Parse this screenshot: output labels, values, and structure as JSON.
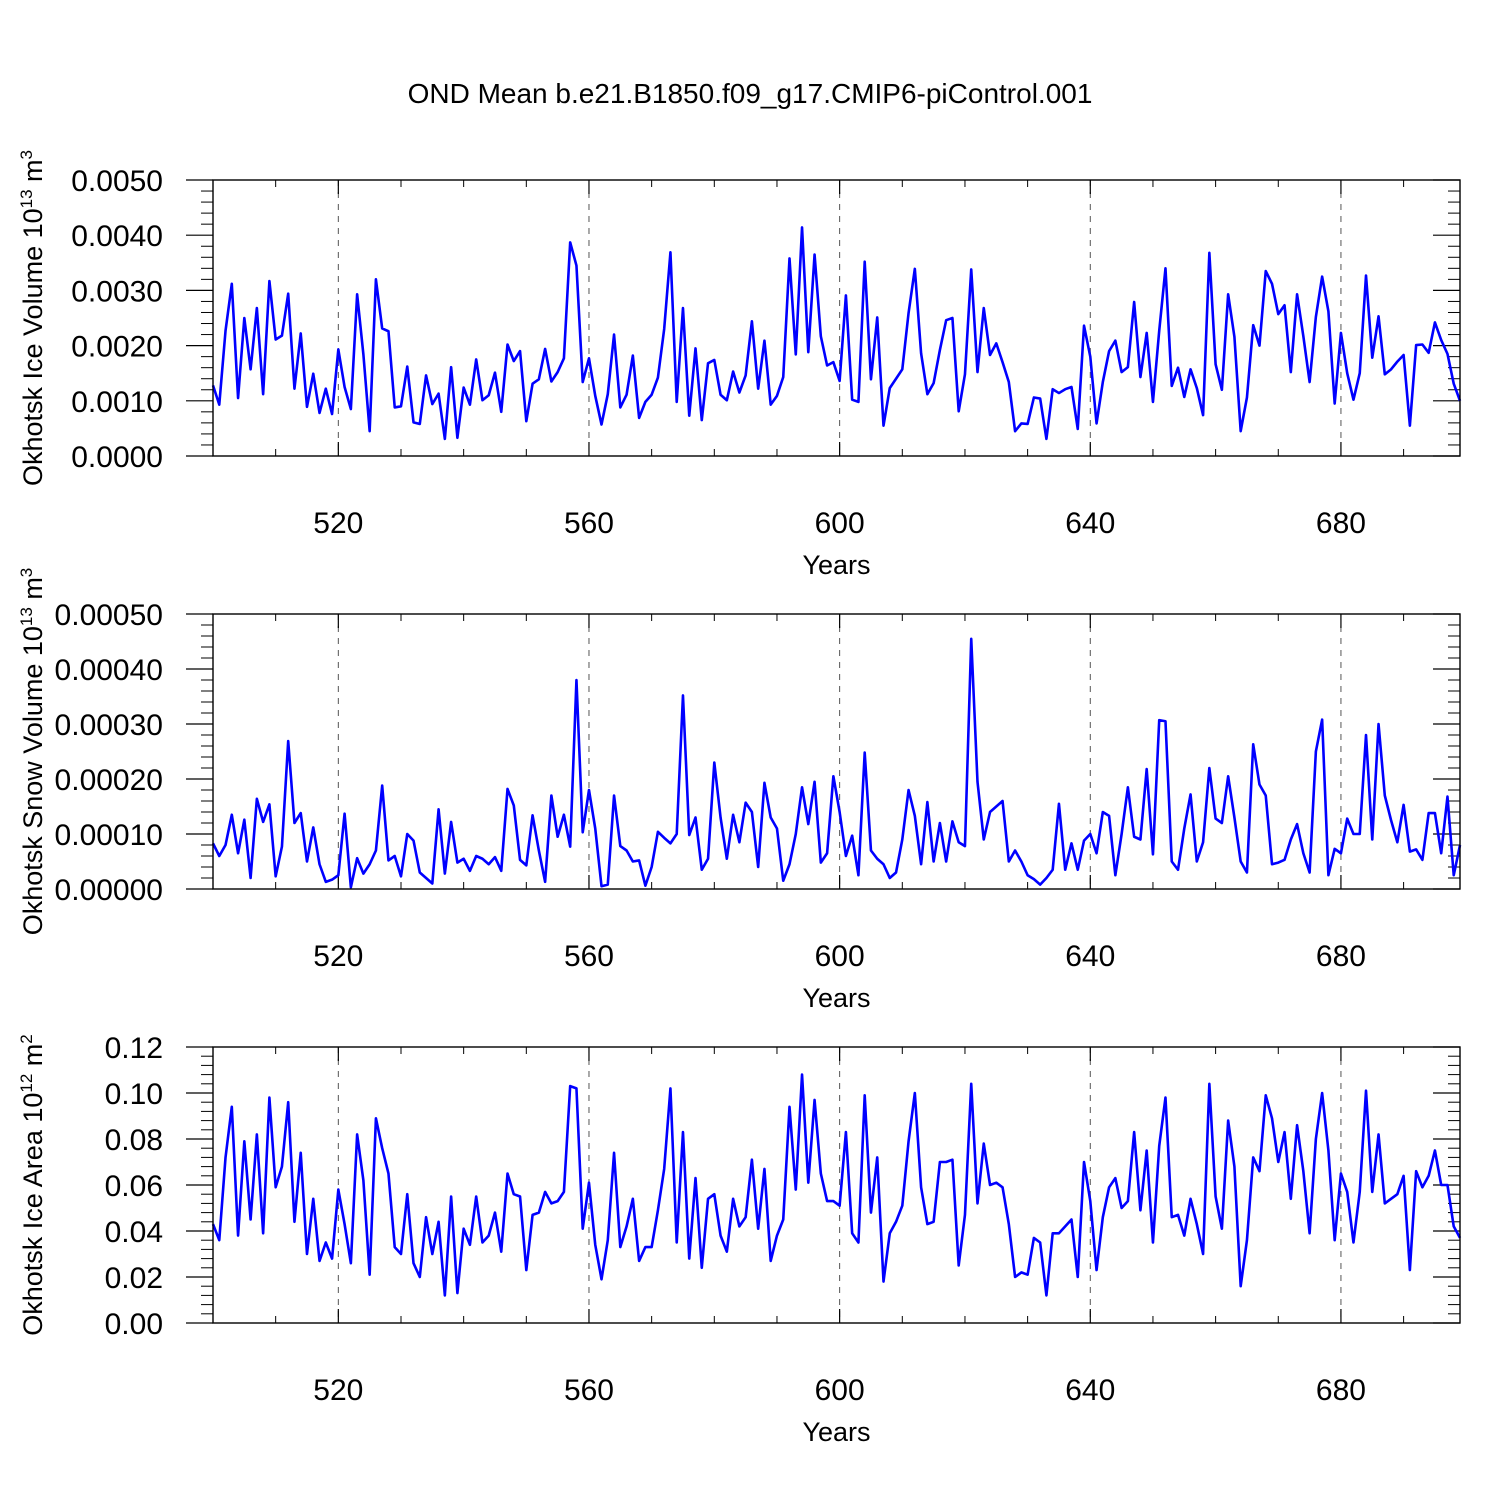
{
  "title": "OND Mean b.e21.B1850.f09_g17.CMIP6-piControl.001",
  "colors": {
    "series": "#0000ff",
    "axis": "#000000",
    "grid": "#555555"
  },
  "chart_data": [
    {
      "type": "line",
      "ylabel_main": "Okhotsk Ice Volume 10",
      "ylabel_exp": "13",
      "ylabel_unit": " m",
      "ylabel_unit_exp": "3",
      "xlabel": "Years",
      "xlim": [
        500,
        699
      ],
      "ylim": [
        0,
        0.005
      ],
      "yticks": [
        0,
        0.001,
        0.002,
        0.003,
        0.004,
        0.005
      ],
      "ytick_labels": [
        "0.0000",
        "0.0010",
        "0.0020",
        "0.0030",
        "0.0040",
        "0.0050"
      ],
      "xticks": [
        520,
        560,
        600,
        640,
        680
      ],
      "xtick_labels": [
        "520",
        "560",
        "600",
        "640",
        "680"
      ],
      "x_start": 500,
      "values": [
        0.00128,
        0.00093,
        0.00227,
        0.00312,
        0.00105,
        0.0025,
        0.00157,
        0.00268,
        0.00112,
        0.00317,
        0.00211,
        0.00218,
        0.00294,
        0.00122,
        0.00222,
        0.00089,
        0.00149,
        0.00078,
        0.00122,
        0.00076,
        0.00193,
        0.00125,
        0.00085,
        0.00293,
        0.00184,
        0.00045,
        0.0032,
        0.00231,
        0.00226,
        0.00088,
        0.0009,
        0.00162,
        0.00061,
        0.00058,
        0.00146,
        0.00094,
        0.00113,
        0.00031,
        0.00161,
        0.00033,
        0.00124,
        0.00093,
        0.00175,
        0.00101,
        0.0011,
        0.00151,
        0.0008,
        0.00202,
        0.00172,
        0.0019,
        0.00063,
        0.00131,
        0.00139,
        0.00194,
        0.00135,
        0.00152,
        0.00177,
        0.00387,
        0.00345,
        0.00134,
        0.00177,
        0.00109,
        0.00057,
        0.00112,
        0.0022,
        0.00088,
        0.00111,
        0.00182,
        0.00069,
        0.00098,
        0.00111,
        0.00142,
        0.0023,
        0.00369,
        0.00098,
        0.00268,
        0.00073,
        0.00195,
        0.00065,
        0.00168,
        0.00174,
        0.00111,
        0.00101,
        0.00153,
        0.00115,
        0.00146,
        0.00244,
        0.00122,
        0.00209,
        0.00093,
        0.00109,
        0.00143,
        0.00358,
        0.00184,
        0.00414,
        0.00188,
        0.00365,
        0.00217,
        0.00164,
        0.0017,
        0.00136,
        0.00291,
        0.00102,
        0.00098,
        0.00352,
        0.00139,
        0.00251,
        0.00055,
        0.00123,
        0.0014,
        0.00157,
        0.00259,
        0.00339,
        0.00186,
        0.00112,
        0.00132,
        0.00192,
        0.00246,
        0.0025,
        0.00081,
        0.00148,
        0.00338,
        0.00152,
        0.00268,
        0.00183,
        0.00204,
        0.0017,
        0.00134,
        0.00045,
        0.00059,
        0.00058,
        0.00106,
        0.00104,
        0.00031,
        0.00121,
        0.00114,
        0.00121,
        0.00125,
        0.00049,
        0.00236,
        0.0018,
        0.00059,
        0.00134,
        0.0019,
        0.00209,
        0.00152,
        0.00161,
        0.00279,
        0.00143,
        0.00223,
        0.00098,
        0.00227,
        0.0034,
        0.00127,
        0.0016,
        0.00107,
        0.00157,
        0.00123,
        0.00074,
        0.00368,
        0.00166,
        0.0012,
        0.00293,
        0.00216,
        0.00045,
        0.00106,
        0.00237,
        0.002,
        0.00335,
        0.00312,
        0.00257,
        0.00273,
        0.00152,
        0.00293,
        0.00217,
        0.00134,
        0.00252,
        0.00325,
        0.00262,
        0.00095,
        0.00223,
        0.0015,
        0.00102,
        0.0015,
        0.00327,
        0.00178,
        0.00253,
        0.00148,
        0.00157,
        0.00171,
        0.00183,
        0.00055,
        0.00201,
        0.00202,
        0.00187,
        0.00242,
        0.0021,
        0.00185,
        0.00131,
        0.001
      ]
    },
    {
      "type": "line",
      "ylabel_main": "Okhotsk Snow Volume 10",
      "ylabel_exp": "13",
      "ylabel_unit": " m",
      "ylabel_unit_exp": "3",
      "xlabel": "Years",
      "xlim": [
        500,
        699
      ],
      "ylim": [
        0,
        0.0005
      ],
      "yticks": [
        0,
        0.0001,
        0.0002,
        0.0003,
        0.0004,
        0.0005
      ],
      "ytick_labels": [
        "0.00000",
        "0.00010",
        "0.00020",
        "0.00030",
        "0.00040",
        "0.00050"
      ],
      "xticks": [
        520,
        560,
        600,
        640,
        680
      ],
      "xtick_labels": [
        "520",
        "560",
        "600",
        "640",
        "680"
      ],
      "x_start": 500,
      "values": [
        8.3e-05,
        6e-05,
        8e-05,
        0.000135,
        6.5e-05,
        0.000126,
        2e-05,
        0.000164,
        0.000122,
        0.000154,
        2.3e-05,
        7.7e-05,
        0.000269,
        0.00012,
        0.000138,
        5e-05,
        0.000112,
        4.5e-05,
        1.3e-05,
        1.7e-05,
        2.5e-05,
        0.000137,
        3e-06,
        5.6e-05,
        2.8e-05,
        4.5e-05,
        7e-05,
        0.000188,
        5.2e-05,
        6e-05,
        2.3e-05,
        0.0001,
        8.8e-05,
        3e-05,
        2e-05,
        1e-05,
        0.000145,
        2.8e-05,
        0.000122,
        4.8e-05,
        5.5e-05,
        3.3e-05,
        6e-05,
        5.5e-05,
        4.5e-05,
        5.8e-05,
        3.3e-05,
        0.000182,
        0.000152,
        5.3e-05,
        4.3e-05,
        0.000134,
        7e-05,
        1.3e-05,
        0.00017,
        9.5e-05,
        0.000135,
        7.7e-05,
        0.00038,
        0.000103,
        0.00018,
        0.00011,
        5e-06,
        8e-06,
        0.00017,
        7.8e-05,
        7e-05,
        5e-05,
        5.2e-05,
        6e-06,
        4e-05,
        0.000104,
        9.3e-05,
        8.3e-05,
        0.0001,
        0.000352,
        9.8e-05,
        0.00013,
        3.5e-05,
        5.5e-05,
        0.00023,
        0.00013,
        5.5e-05,
        0.000135,
        8.5e-05,
        0.000157,
        0.00014,
        4e-05,
        0.000193,
        0.00013,
        0.00011,
        1.5e-05,
        4.5e-05,
        0.0001,
        0.000185,
        0.000118,
        0.000195,
        4.8e-05,
        6.5e-05,
        0.000205,
        0.00014,
        6e-05,
        9.7e-05,
        2.5e-05,
        0.000248,
        7e-05,
        5.5e-05,
        4.5e-05,
        2e-05,
        3e-05,
        9e-05,
        0.00018,
        0.000133,
        4.5e-05,
        0.000158,
        5e-05,
        0.00012,
        5e-05,
        0.000123,
        8.5e-05,
        7.8e-05,
        0.000455,
        0.000195,
        9e-05,
        0.00014,
        0.00015,
        0.00016,
        5e-05,
        7e-05,
        5e-05,
        2.5e-05,
        1.8e-05,
        8e-06,
        2e-05,
        3.5e-05,
        0.000155,
        3.5e-05,
        8.3e-05,
        3.5e-05,
        8.8e-05,
        0.0001,
        6.5e-05,
        0.00014,
        0.000133,
        2.5e-05,
        0.0001,
        0.000185,
        9.5e-05,
        9e-05,
        0.000218,
        6.3e-05,
        0.000307,
        0.000305,
        5e-05,
        3.5e-05,
        0.00011,
        0.000172,
        5e-05,
        8.5e-05,
        0.00022,
        0.000128,
        0.00012,
        0.000205,
        0.00013,
        5e-05,
        3e-05,
        0.000263,
        0.00019,
        0.00017,
        4.5e-05,
        4.8e-05,
        5.3e-05,
        9e-05,
        0.000118,
        6.5e-05,
        3e-05,
        0.00025,
        0.000308,
        2.5e-05,
        7.3e-05,
        6.5e-05,
        0.000128,
        0.0001,
        0.0001,
        0.00028,
        9e-05,
        0.0003,
        0.00017,
        0.000125,
        8.5e-05,
        0.000153,
        6.8e-05,
        7.2e-05,
        5.3e-05,
        0.000138,
        0.000138,
        6.5e-05,
        0.000168,
        2.5e-05,
        8e-05
      ]
    },
    {
      "type": "line",
      "ylabel_main": "Okhotsk Ice Area 10",
      "ylabel_exp": "12",
      "ylabel_unit": " m",
      "ylabel_unit_exp": "2",
      "xlabel": "Years",
      "xlim": [
        500,
        699
      ],
      "ylim": [
        0,
        0.12
      ],
      "yticks": [
        0,
        0.02,
        0.04,
        0.06,
        0.08,
        0.1,
        0.12
      ],
      "ytick_labels": [
        "0.00",
        "0.02",
        "0.04",
        "0.06",
        "0.08",
        "0.10",
        "0.12"
      ],
      "xticks": [
        520,
        560,
        600,
        640,
        680
      ],
      "xtick_labels": [
        "520",
        "560",
        "600",
        "640",
        "680"
      ],
      "x_start": 500,
      "values": [
        0.043,
        0.036,
        0.072,
        0.094,
        0.038,
        0.079,
        0.045,
        0.082,
        0.039,
        0.098,
        0.059,
        0.068,
        0.096,
        0.044,
        0.074,
        0.03,
        0.054,
        0.027,
        0.035,
        0.028,
        0.058,
        0.043,
        0.026,
        0.082,
        0.062,
        0.021,
        0.089,
        0.076,
        0.065,
        0.033,
        0.03,
        0.056,
        0.026,
        0.02,
        0.046,
        0.03,
        0.044,
        0.012,
        0.055,
        0.013,
        0.041,
        0.034,
        0.055,
        0.035,
        0.038,
        0.048,
        0.031,
        0.065,
        0.056,
        0.055,
        0.023,
        0.047,
        0.048,
        0.057,
        0.052,
        0.053,
        0.057,
        0.103,
        0.102,
        0.041,
        0.061,
        0.034,
        0.019,
        0.036,
        0.074,
        0.033,
        0.042,
        0.054,
        0.027,
        0.033,
        0.033,
        0.049,
        0.067,
        0.102,
        0.035,
        0.083,
        0.028,
        0.063,
        0.024,
        0.054,
        0.056,
        0.038,
        0.031,
        0.054,
        0.042,
        0.046,
        0.071,
        0.041,
        0.067,
        0.027,
        0.038,
        0.045,
        0.094,
        0.058,
        0.108,
        0.061,
        0.097,
        0.065,
        0.053,
        0.053,
        0.051,
        0.083,
        0.039,
        0.035,
        0.099,
        0.048,
        0.072,
        0.018,
        0.039,
        0.044,
        0.051,
        0.079,
        0.1,
        0.059,
        0.043,
        0.044,
        0.07,
        0.07,
        0.071,
        0.025,
        0.047,
        0.104,
        0.052,
        0.078,
        0.06,
        0.061,
        0.059,
        0.043,
        0.02,
        0.022,
        0.021,
        0.037,
        0.035,
        0.012,
        0.039,
        0.039,
        0.042,
        0.045,
        0.02,
        0.07,
        0.053,
        0.023,
        0.046,
        0.059,
        0.063,
        0.05,
        0.053,
        0.083,
        0.049,
        0.075,
        0.035,
        0.077,
        0.098,
        0.046,
        0.047,
        0.038,
        0.054,
        0.043,
        0.03,
        0.104,
        0.055,
        0.041,
        0.088,
        0.068,
        0.016,
        0.036,
        0.072,
        0.066,
        0.099,
        0.089,
        0.07,
        0.083,
        0.054,
        0.086,
        0.066,
        0.039,
        0.08,
        0.1,
        0.075,
        0.036,
        0.065,
        0.057,
        0.035,
        0.057,
        0.101,
        0.057,
        0.082,
        0.052,
        0.054,
        0.056,
        0.064,
        0.023,
        0.066,
        0.059,
        0.064,
        0.075,
        0.06,
        0.06,
        0.042,
        0.037
      ]
    }
  ]
}
